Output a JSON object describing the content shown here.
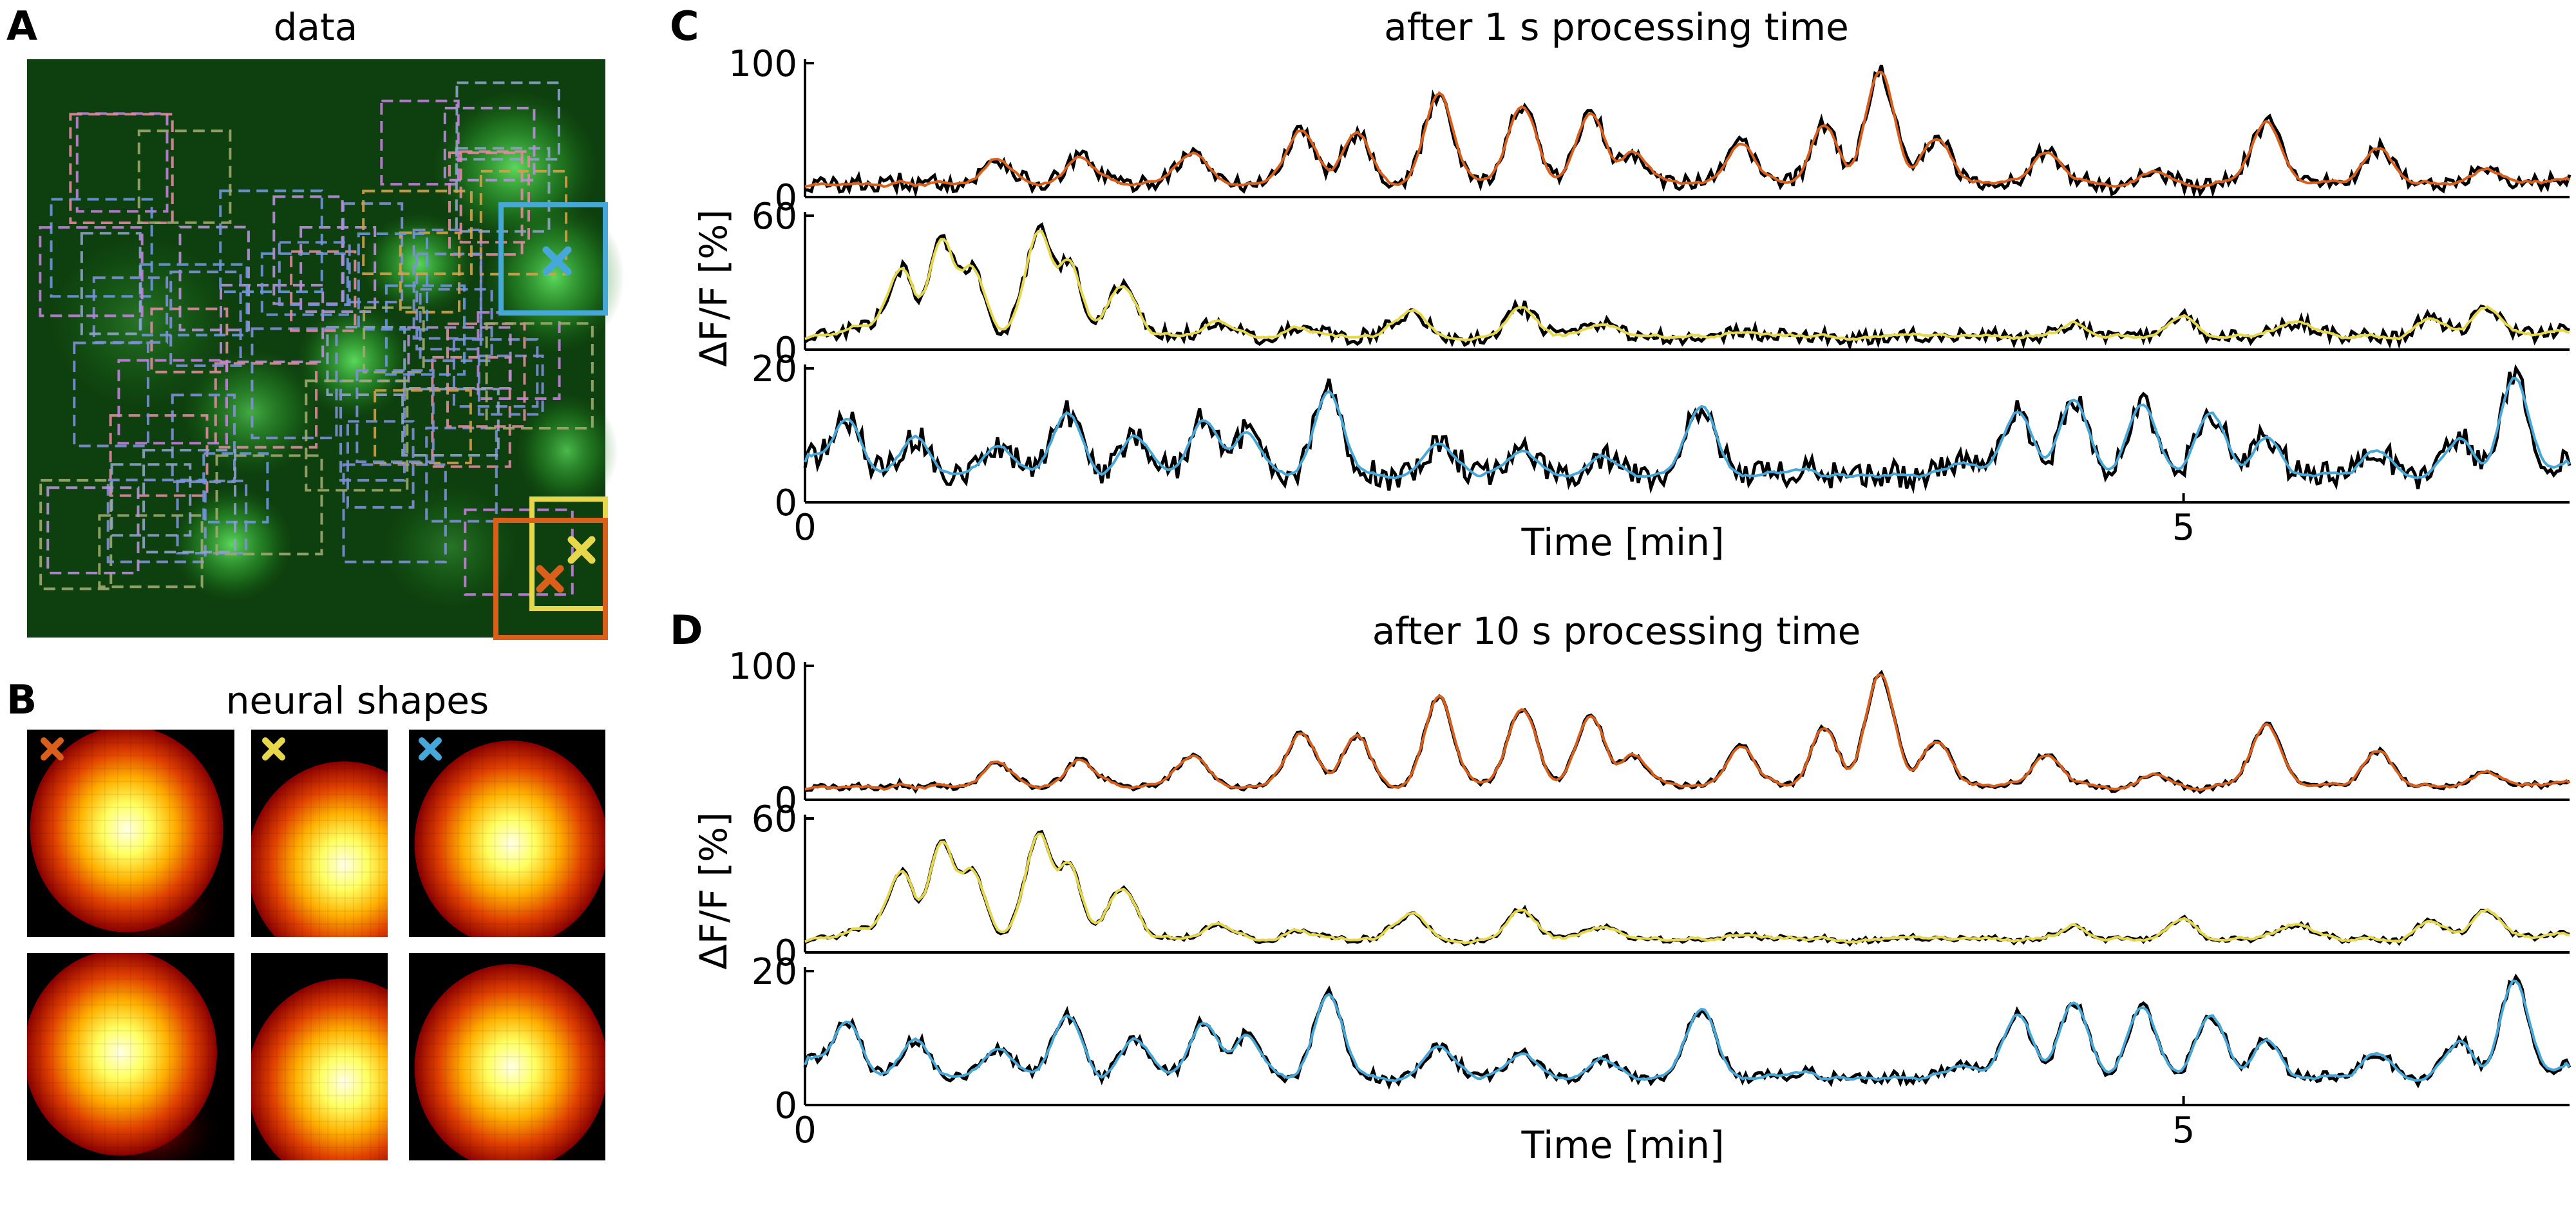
{
  "panels": {
    "a": {
      "letter": "A",
      "title": "data"
    },
    "b": {
      "letter": "B",
      "title": "neural shapes"
    },
    "c": {
      "letter": "C",
      "title": "after 1 s processing time"
    },
    "d": {
      "letter": "D",
      "title": "after 10 s processing time"
    }
  },
  "colors": {
    "neuron1": "#d95f1a",
    "neuron2": "#e6d84a",
    "neuron3": "#46a8d8",
    "truth": "#000000",
    "background_green": "#0b4a0b"
  },
  "markers": [
    {
      "neuron": "neuron3",
      "label": "cyan cross"
    },
    {
      "neuron": "neuron2",
      "label": "yellow cross"
    },
    {
      "neuron": "neuron1",
      "label": "orange cross"
    }
  ],
  "chart_data": [
    {
      "type": "line",
      "panel": "C",
      "title": "after 1 s processing time",
      "xlabel": "Time [min]",
      "ylabel": "ΔF/F [%]",
      "x_ticks": [
        0,
        5
      ],
      "xlim": [
        0,
        6.4
      ],
      "grid": false,
      "subplots": [
        {
          "ylim": [
            0,
            100
          ],
          "y_ticks": [
            0,
            100
          ],
          "color": "#d95f1a",
          "peaks": [
            [
              0.25,
              8
            ],
            [
              0.7,
              30
            ],
            [
              1.0,
              30
            ],
            [
              1.4,
              36
            ],
            [
              1.8,
              52
            ],
            [
              2.0,
              50
            ],
            [
              2.3,
              80
            ],
            [
              2.6,
              70
            ],
            [
              2.85,
              65
            ],
            [
              3.0,
              35
            ],
            [
              3.4,
              40
            ],
            [
              3.7,
              55
            ],
            [
              3.9,
              98
            ],
            [
              4.1,
              45
            ],
            [
              4.5,
              35
            ],
            [
              4.9,
              20
            ],
            [
              5.3,
              58
            ],
            [
              5.7,
              38
            ],
            [
              6.1,
              20
            ],
            [
              6.3,
              12
            ]
          ],
          "base": 10,
          "seed": 11,
          "tail_deviation": 6
        },
        {
          "ylim": [
            0,
            60
          ],
          "y_ticks": [
            0,
            60
          ],
          "color": "#e6d84a",
          "peaks": [
            [
              0.2,
              12
            ],
            [
              0.35,
              38
            ],
            [
              0.5,
              52
            ],
            [
              0.6,
              40
            ],
            [
              0.85,
              55
            ],
            [
              0.95,
              42
            ],
            [
              1.15,
              30
            ],
            [
              1.5,
              12
            ],
            [
              1.8,
              10
            ],
            [
              2.2,
              18
            ],
            [
              2.6,
              20
            ],
            [
              2.9,
              12
            ],
            [
              3.4,
              8
            ],
            [
              4.0,
              7
            ],
            [
              4.6,
              12
            ],
            [
              5.0,
              15
            ],
            [
              5.4,
              13
            ],
            [
              5.9,
              15
            ],
            [
              6.1,
              20
            ],
            [
              6.35,
              8
            ]
          ],
          "base": 6,
          "seed": 23,
          "tail_deviation": 3
        },
        {
          "ylim": [
            0,
            20
          ],
          "y_ticks": [
            0,
            20
          ],
          "color": "#46a8d8",
          "peaks": [
            [
              0.05,
              8
            ],
            [
              0.15,
              13
            ],
            [
              0.4,
              10
            ],
            [
              0.7,
              9
            ],
            [
              0.95,
              14
            ],
            [
              1.2,
              10
            ],
            [
              1.45,
              13
            ],
            [
              1.6,
              11
            ],
            [
              1.9,
              17
            ],
            [
              2.3,
              9
            ],
            [
              2.6,
              8
            ],
            [
              2.9,
              7
            ],
            [
              3.25,
              15
            ],
            [
              3.6,
              5
            ],
            [
              3.9,
              4
            ],
            [
              4.2,
              6
            ],
            [
              4.4,
              14
            ],
            [
              4.6,
              16
            ],
            [
              4.85,
              15
            ],
            [
              5.1,
              14
            ],
            [
              5.3,
              10
            ],
            [
              5.7,
              8
            ],
            [
              6.0,
              10
            ],
            [
              6.2,
              19
            ],
            [
              6.38,
              6
            ]
          ],
          "base": 4,
          "seed": 37,
          "tail_deviation": 2
        }
      ]
    },
    {
      "type": "line",
      "panel": "D",
      "title": "after 10 s processing time",
      "xlabel": "Time [min]",
      "ylabel": "ΔF/F [%]",
      "x_ticks": [
        0,
        5
      ],
      "xlim": [
        0,
        6.4
      ],
      "grid": false,
      "subplots": [
        {
          "ylim": [
            0,
            100
          ],
          "y_ticks": [
            0,
            100
          ],
          "color": "#d95f1a",
          "peaks": [
            [
              0.25,
              8
            ],
            [
              0.7,
              30
            ],
            [
              1.0,
              30
            ],
            [
              1.4,
              36
            ],
            [
              1.8,
              52
            ],
            [
              2.0,
              50
            ],
            [
              2.3,
              80
            ],
            [
              2.6,
              70
            ],
            [
              2.85,
              65
            ],
            [
              3.0,
              35
            ],
            [
              3.4,
              40
            ],
            [
              3.7,
              55
            ],
            [
              3.9,
              98
            ],
            [
              4.1,
              45
            ],
            [
              4.5,
              35
            ],
            [
              4.9,
              20
            ],
            [
              5.3,
              58
            ],
            [
              5.7,
              38
            ],
            [
              6.1,
              20
            ],
            [
              6.3,
              12
            ]
          ],
          "base": 10,
          "seed": 11,
          "tail_deviation": 2
        },
        {
          "ylim": [
            0,
            60
          ],
          "y_ticks": [
            0,
            60
          ],
          "color": "#e6d84a",
          "peaks": [
            [
              0.2,
              12
            ],
            [
              0.35,
              38
            ],
            [
              0.5,
              52
            ],
            [
              0.6,
              40
            ],
            [
              0.85,
              55
            ],
            [
              0.95,
              42
            ],
            [
              1.15,
              30
            ],
            [
              1.5,
              12
            ],
            [
              1.8,
              10
            ],
            [
              2.2,
              18
            ],
            [
              2.6,
              20
            ],
            [
              2.9,
              12
            ],
            [
              3.4,
              8
            ],
            [
              4.0,
              7
            ],
            [
              4.6,
              12
            ],
            [
              5.0,
              15
            ],
            [
              5.4,
              13
            ],
            [
              5.9,
              15
            ],
            [
              6.1,
              20
            ],
            [
              6.35,
              8
            ]
          ],
          "base": 6,
          "seed": 23,
          "tail_deviation": 1
        },
        {
          "ylim": [
            0,
            20
          ],
          "y_ticks": [
            0,
            20
          ],
          "color": "#46a8d8",
          "peaks": [
            [
              0.05,
              8
            ],
            [
              0.15,
              13
            ],
            [
              0.4,
              10
            ],
            [
              0.7,
              9
            ],
            [
              0.95,
              14
            ],
            [
              1.2,
              10
            ],
            [
              1.45,
              13
            ],
            [
              1.6,
              11
            ],
            [
              1.9,
              17
            ],
            [
              2.3,
              9
            ],
            [
              2.6,
              8
            ],
            [
              2.9,
              7
            ],
            [
              3.25,
              15
            ],
            [
              3.6,
              5
            ],
            [
              3.9,
              4
            ],
            [
              4.2,
              6
            ],
            [
              4.4,
              14
            ],
            [
              4.6,
              16
            ],
            [
              4.85,
              15
            ],
            [
              5.1,
              14
            ],
            [
              5.3,
              10
            ],
            [
              5.7,
              8
            ],
            [
              6.0,
              10
            ],
            [
              6.2,
              19
            ],
            [
              6.38,
              6
            ]
          ],
          "base": 4,
          "seed": 37,
          "tail_deviation": 0.8
        }
      ]
    }
  ]
}
